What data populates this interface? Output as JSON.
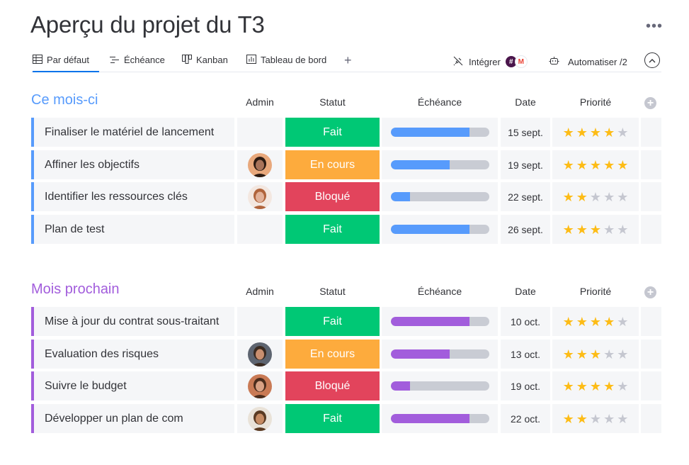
{
  "page": {
    "title": "Aperçu du projet du T3"
  },
  "tabs": [
    {
      "label": "Par défaut",
      "icon": "table-icon",
      "active": true
    },
    {
      "label": "Échéance",
      "icon": "gantt-icon",
      "active": false
    },
    {
      "label": "Kanban",
      "icon": "kanban-icon",
      "active": false
    },
    {
      "label": "Tableau de bord",
      "icon": "dashboard-icon",
      "active": false
    }
  ],
  "toolbar": {
    "integrate_label": "Intégrer",
    "automate_label": "Automatiser /2"
  },
  "columns": {
    "admin": "Admin",
    "status": "Statut",
    "timeline": "Échéance",
    "date": "Date",
    "priority": "Priorité"
  },
  "colors": {
    "status_done": "#00c875",
    "status_working": "#fdab3d",
    "status_stuck": "#e2445c",
    "group1": "#579bfc",
    "group2": "#a25ddc",
    "star": "#fdbc16"
  },
  "groups": [
    {
      "title": "Ce mois-ci",
      "color": "#579bfc",
      "rows": [
        {
          "name": "Finaliser le matériel de lancement",
          "admin": "",
          "status": "Fait",
          "status_color": "#00c875",
          "progress": 0.8,
          "date": "15 sept.",
          "priority": 4
        },
        {
          "name": "Affiner les objectifs",
          "admin": "avatar-1",
          "status": "En cours",
          "status_color": "#fdab3d",
          "progress": 0.6,
          "date": "19 sept.",
          "priority": 5
        },
        {
          "name": "Identifier les ressources clés",
          "admin": "avatar-2",
          "status": "Bloqué",
          "status_color": "#e2445c",
          "progress": 0.2,
          "date": "22 sept.",
          "priority": 2
        },
        {
          "name": "Plan de test",
          "admin": "",
          "status": "Fait",
          "status_color": "#00c875",
          "progress": 0.8,
          "date": "26 sept.",
          "priority": 3
        }
      ]
    },
    {
      "title": "Mois prochain",
      "color": "#a25ddc",
      "rows": [
        {
          "name": "Mise à jour du contrat sous-traitant",
          "admin": "",
          "status": "Fait",
          "status_color": "#00c875",
          "progress": 0.8,
          "date": "10 oct.",
          "priority": 4
        },
        {
          "name": "Evaluation des risques",
          "admin": "avatar-3",
          "status": "En cours",
          "status_color": "#fdab3d",
          "progress": 0.6,
          "date": "13 oct.",
          "priority": 3
        },
        {
          "name": "Suivre le budget",
          "admin": "avatar-4",
          "status": "Bloqué",
          "status_color": "#e2445c",
          "progress": 0.2,
          "date": "19 oct.",
          "priority": 4
        },
        {
          "name": "Développer un plan de com",
          "admin": "avatar-5",
          "status": "Fait",
          "status_color": "#00c875",
          "progress": 0.8,
          "date": "22 oct.",
          "priority": 2
        }
      ]
    }
  ]
}
